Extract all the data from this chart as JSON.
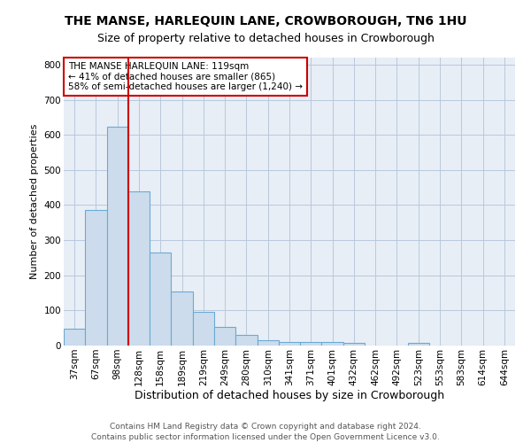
{
  "title": "THE MANSE, HARLEQUIN LANE, CROWBOROUGH, TN6 1HU",
  "subtitle": "Size of property relative to detached houses in Crowborough",
  "xlabel": "Distribution of detached houses by size in Crowborough",
  "ylabel": "Number of detached properties",
  "footer1": "Contains HM Land Registry data © Crown copyright and database right 2024.",
  "footer2": "Contains public sector information licensed under the Open Government Licence v3.0.",
  "bar_labels": [
    "37sqm",
    "67sqm",
    "98sqm",
    "128sqm",
    "158sqm",
    "189sqm",
    "219sqm",
    "249sqm",
    "280sqm",
    "310sqm",
    "341sqm",
    "371sqm",
    "401sqm",
    "432sqm",
    "462sqm",
    "492sqm",
    "523sqm",
    "553sqm",
    "583sqm",
    "614sqm",
    "644sqm"
  ],
  "bar_values": [
    47,
    385,
    622,
    440,
    265,
    155,
    95,
    52,
    30,
    15,
    10,
    10,
    10,
    8,
    0,
    0,
    8,
    0,
    0,
    0,
    0
  ],
  "bar_color": "#ccdcec",
  "bar_edge_color": "#6aaad4",
  "vline_x": 2.5,
  "vline_color": "#cc0000",
  "annotation_text": "THE MANSE HARLEQUIN LANE: 119sqm\n← 41% of detached houses are smaller (865)\n58% of semi-detached houses are larger (1,240) →",
  "annotation_box_color": "#ffffff",
  "annotation_box_edge": "#cc0000",
  "ylim": [
    0,
    820
  ],
  "yticks": [
    0,
    100,
    200,
    300,
    400,
    500,
    600,
    700,
    800
  ],
  "grid_color": "#b8c8dc",
  "background_color": "#e8eef6",
  "title_fontsize": 10,
  "subtitle_fontsize": 9,
  "ylabel_fontsize": 8,
  "xlabel_fontsize": 9,
  "tick_fontsize": 7.5,
  "ann_fontsize": 7.5,
  "footer_fontsize": 6.5
}
